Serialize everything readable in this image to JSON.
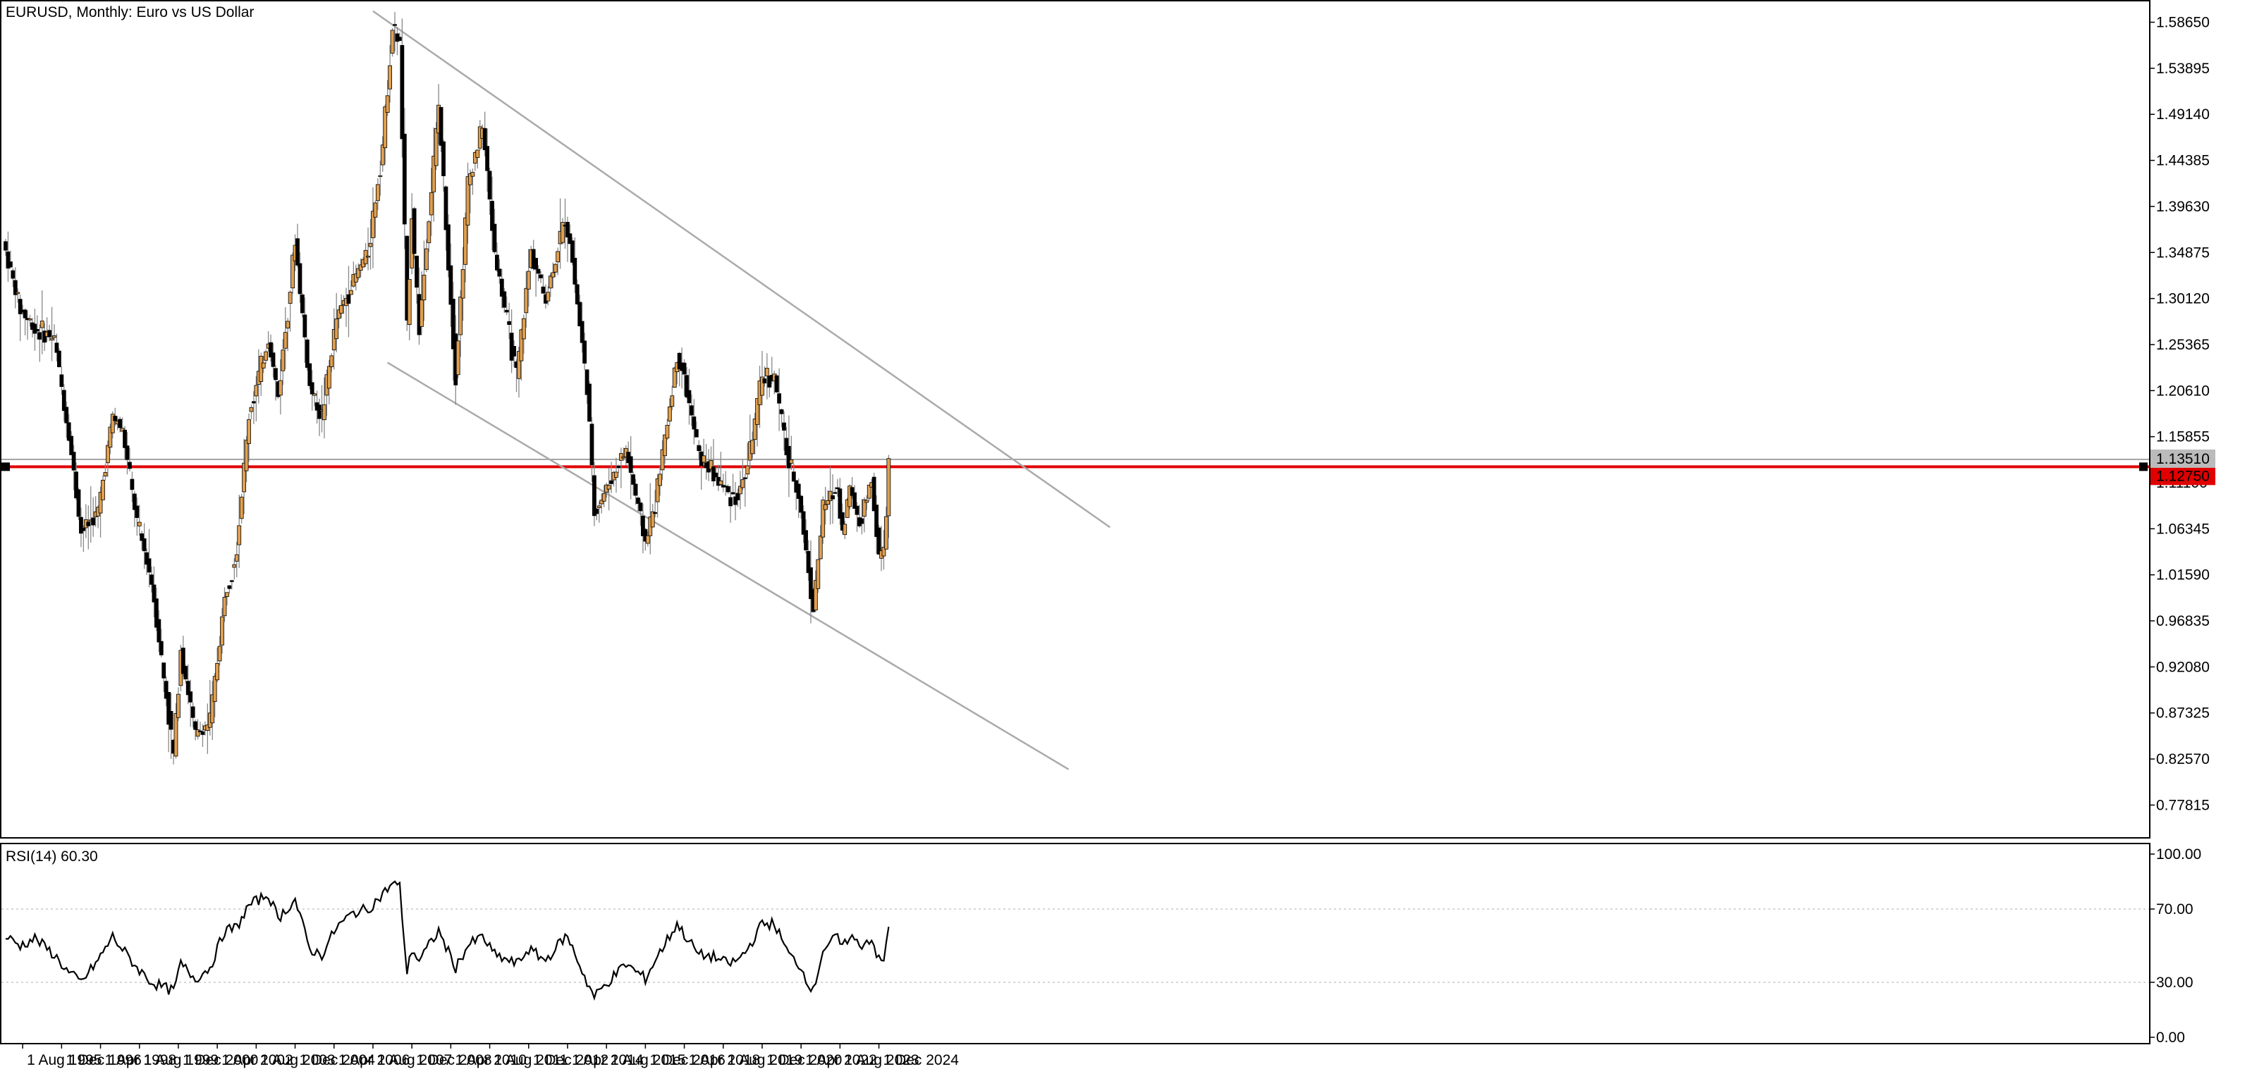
{
  "chart_data": [
    {
      "type": "candlestick",
      "symbol": "EURUSD",
      "timeframe": "Monthly",
      "description": "Euro vs US Dollar",
      "header_text": "EURUSD, Monthly:  Euro vs US Dollar",
      "y_ticks": [
        "1.58650",
        "1.53895",
        "1.49140",
        "1.44385",
        "1.39630",
        "1.34875",
        "1.30120",
        "1.25365",
        "1.20610",
        "1.15855",
        "1.11100",
        "1.06345",
        "1.01590",
        "0.96835",
        "0.92080",
        "0.87325",
        "0.82570",
        "0.77815"
      ],
      "ylim": [
        0.745,
        1.608
      ],
      "x_ticks": [
        "1 Aug 1995",
        "1 Dec 1996",
        "1 Apr 1998",
        "1 Aug 1999",
        "1 Dec 2000",
        "1 Apr 2002",
        "1 Aug 2003",
        "1 Dec 2004",
        "1 Apr 2006",
        "1 Aug 2007",
        "1 Dec 2008",
        "1 Apr 2010",
        "1 Aug 2011",
        "1 Dec 2012",
        "1 Apr 2014",
        "1 Aug 2015",
        "1 Dec 2016",
        "1 Apr 2018",
        "1 Aug 2019",
        "1 Dec 2020",
        "1 Apr 2022",
        "1 Aug 2023",
        "1 Dec 2024"
      ],
      "candle_colors": {
        "bull": "#e0a050",
        "bear": "#000000",
        "wick": "#888888"
      },
      "key_points": [
        [
          "1995-01",
          1.35
        ],
        [
          "1995-07",
          1.29
        ],
        [
          "1996-01",
          1.27
        ],
        [
          "1996-09",
          1.26
        ],
        [
          "1997-03",
          1.16
        ],
        [
          "1997-08",
          1.06
        ],
        [
          "1998-03",
          1.08
        ],
        [
          "1998-09",
          1.18
        ],
        [
          "1999-01",
          1.165
        ],
        [
          "1999-07",
          1.07
        ],
        [
          "2000-01",
          1.01
        ],
        [
          "2000-10",
          0.83
        ],
        [
          "2001-01",
          0.94
        ],
        [
          "2001-07",
          0.85
        ],
        [
          "2002-01",
          0.865
        ],
        [
          "2002-07",
          0.99
        ],
        [
          "2002-12",
          1.045
        ],
        [
          "2003-05",
          1.18
        ],
        [
          "2004-01",
          1.26
        ],
        [
          "2004-05",
          1.2
        ],
        [
          "2004-12",
          1.36
        ],
        [
          "2005-06",
          1.21
        ],
        [
          "2005-11",
          1.18
        ],
        [
          "2006-05",
          1.28
        ],
        [
          "2006-12",
          1.32
        ],
        [
          "2007-06",
          1.35
        ],
        [
          "2007-12",
          1.46
        ],
        [
          "2008-04",
          1.58
        ],
        [
          "2008-07",
          1.565
        ],
        [
          "2008-10",
          1.27
        ],
        [
          "2008-12",
          1.39
        ],
        [
          "2009-03",
          1.27
        ],
        [
          "2009-11",
          1.5
        ],
        [
          "2010-06",
          1.22
        ],
        [
          "2010-11",
          1.42
        ],
        [
          "2011-05",
          1.48
        ],
        [
          "2011-10",
          1.35
        ],
        [
          "2012-07",
          1.22
        ],
        [
          "2013-01",
          1.35
        ],
        [
          "2013-07",
          1.3
        ],
        [
          "2014-03",
          1.385
        ],
        [
          "2014-05",
          1.36
        ],
        [
          "2014-12",
          1.21
        ],
        [
          "2015-03",
          1.08
        ],
        [
          "2015-07",
          1.1
        ],
        [
          "2016-04",
          1.145
        ],
        [
          "2016-12",
          1.05
        ],
        [
          "2017-04",
          1.09
        ],
        [
          "2018-01",
          1.24
        ],
        [
          "2018-03",
          1.23
        ],
        [
          "2018-10",
          1.14
        ],
        [
          "2019-04",
          1.12
        ],
        [
          "2019-10",
          1.1
        ],
        [
          "2020-02",
          1.095
        ],
        [
          "2020-06",
          1.13
        ],
        [
          "2020-12",
          1.22
        ],
        [
          "2021-05",
          1.22
        ],
        [
          "2021-11",
          1.13
        ],
        [
          "2022-03",
          1.1
        ],
        [
          "2022-09",
          0.98
        ],
        [
          "2023-01",
          1.085
        ],
        [
          "2023-07",
          1.105
        ],
        [
          "2023-09",
          1.06
        ],
        [
          "2023-12",
          1.105
        ],
        [
          "2024-04",
          1.07
        ],
        [
          "2024-09",
          1.113
        ],
        [
          "2024-12",
          1.035
        ],
        [
          "2025-01",
          1.035
        ],
        [
          "2025-02",
          1.04
        ],
        [
          "2025-03",
          1.08
        ],
        [
          "2025-04",
          1.135
        ]
      ],
      "horizontal_lines": [
        {
          "level": 1.1275,
          "label": "1.12750",
          "color": "#e00000"
        },
        {
          "level": 1.1351,
          "label": "1.13510",
          "color": "#999999"
        }
      ],
      "trendlines": [
        {
          "from": [
            "2007-08",
            1.598
          ],
          "to": [
            "2032-11",
            1.065
          ],
          "color": "#aaaaaa"
        },
        {
          "from": [
            "2008-02",
            1.235
          ],
          "to": [
            "2031-06",
            0.815
          ],
          "color": "#aaaaaa"
        }
      ]
    },
    {
      "type": "line",
      "label": "RSI(14) 60.30",
      "y_ticks": [
        "100.00",
        "70.00",
        "30.00",
        "0.00"
      ],
      "ylim": [
        0,
        100
      ],
      "levels": [
        70,
        30
      ],
      "key_points": [
        [
          "1995-01",
          55
        ],
        [
          "1995-07",
          50
        ],
        [
          "1996-01",
          54
        ],
        [
          "1996-09",
          45
        ],
        [
          "1997-03",
          35
        ],
        [
          "1997-08",
          30
        ],
        [
          "1998-03",
          42
        ],
        [
          "1998-09",
          55
        ],
        [
          "1999-01",
          48
        ],
        [
          "1999-07",
          38
        ],
        [
          "2000-01",
          30
        ],
        [
          "2000-10",
          25
        ],
        [
          "2001-01",
          40
        ],
        [
          "2001-07",
          32
        ],
        [
          "2002-01",
          38
        ],
        [
          "2002-07",
          58
        ],
        [
          "2002-12",
          60
        ],
        [
          "2003-05",
          72
        ],
        [
          "2004-01",
          78
        ],
        [
          "2004-05",
          65
        ],
        [
          "2004-12",
          75
        ],
        [
          "2005-06",
          48
        ],
        [
          "2005-11",
          45
        ],
        [
          "2006-05",
          60
        ],
        [
          "2006-12",
          68
        ],
        [
          "2007-06",
          70
        ],
        [
          "2007-12",
          78
        ],
        [
          "2008-04",
          84
        ],
        [
          "2008-07",
          82
        ],
        [
          "2008-10",
          35
        ],
        [
          "2008-12",
          48
        ],
        [
          "2009-03",
          42
        ],
        [
          "2009-11",
          58
        ],
        [
          "2010-06",
          38
        ],
        [
          "2010-11",
          50
        ],
        [
          "2011-05",
          55
        ],
        [
          "2011-10",
          45
        ],
        [
          "2012-07",
          40
        ],
        [
          "2012-12",
          48
        ],
        [
          "2013-07",
          42
        ],
        [
          "2014-03",
          55
        ],
        [
          "2014-05",
          52
        ],
        [
          "2014-12",
          30
        ],
        [
          "2015-03",
          22
        ],
        [
          "2015-07",
          28
        ],
        [
          "2016-04",
          40
        ],
        [
          "2016-12",
          32
        ],
        [
          "2017-04",
          42
        ],
        [
          "2018-01",
          62
        ],
        [
          "2018-03",
          58
        ],
        [
          "2018-10",
          45
        ],
        [
          "2019-04",
          44
        ],
        [
          "2019-10",
          40
        ],
        [
          "2020-02",
          42
        ],
        [
          "2020-06",
          48
        ],
        [
          "2020-12",
          62
        ],
        [
          "2021-05",
          62
        ],
        [
          "2021-11",
          45
        ],
        [
          "2022-03",
          40
        ],
        [
          "2022-09",
          25
        ],
        [
          "2023-01",
          48
        ],
        [
          "2023-07",
          55
        ],
        [
          "2023-09",
          48
        ],
        [
          "2023-12",
          56
        ],
        [
          "2024-04",
          50
        ],
        [
          "2024-09",
          54
        ],
        [
          "2024-12",
          42
        ],
        [
          "2025-01",
          41
        ],
        [
          "2025-02",
          42
        ],
        [
          "2025-03",
          50
        ],
        [
          "2025-04",
          60.3
        ]
      ]
    }
  ]
}
